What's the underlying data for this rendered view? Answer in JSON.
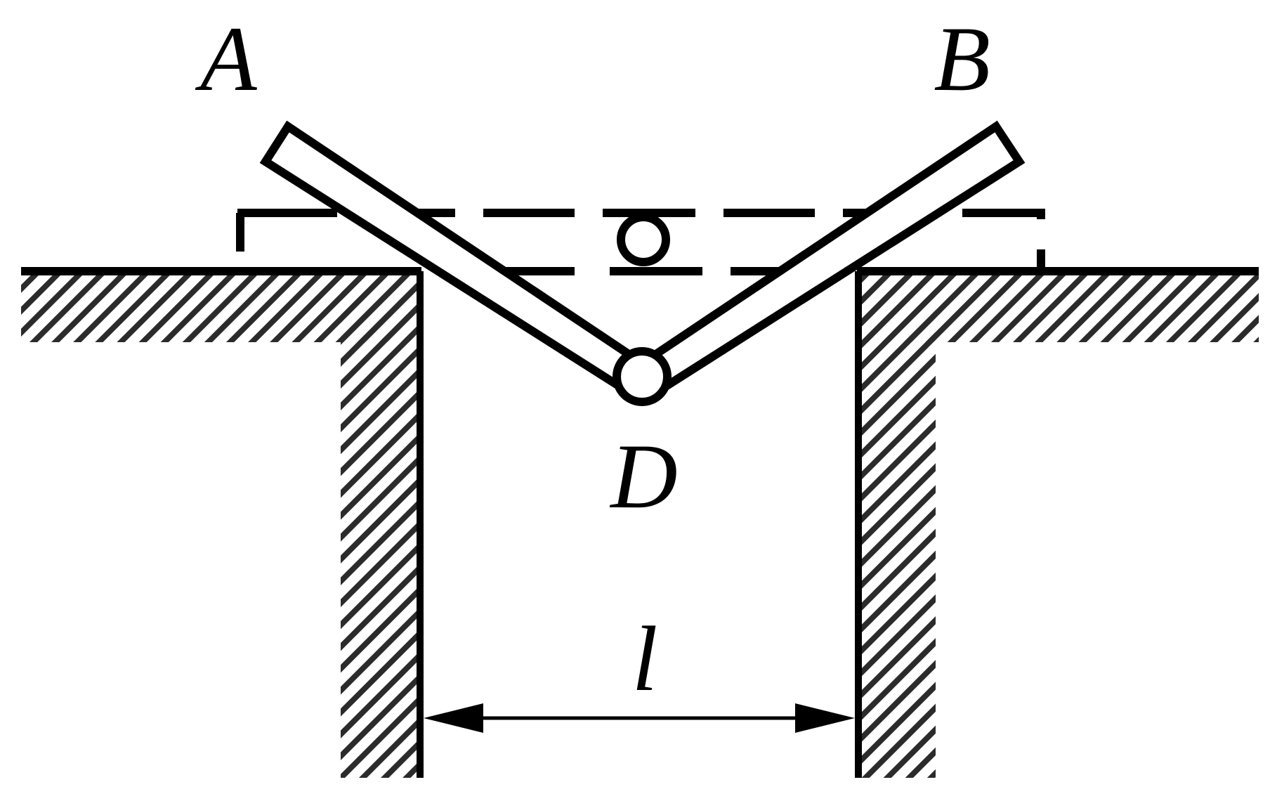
{
  "labels": {
    "a": "A",
    "b": "B",
    "d": "D",
    "span": "l"
  },
  "colors": {
    "ink": "#000000",
    "hatch": "#2b2b2b",
    "background": "#ffffff"
  }
}
